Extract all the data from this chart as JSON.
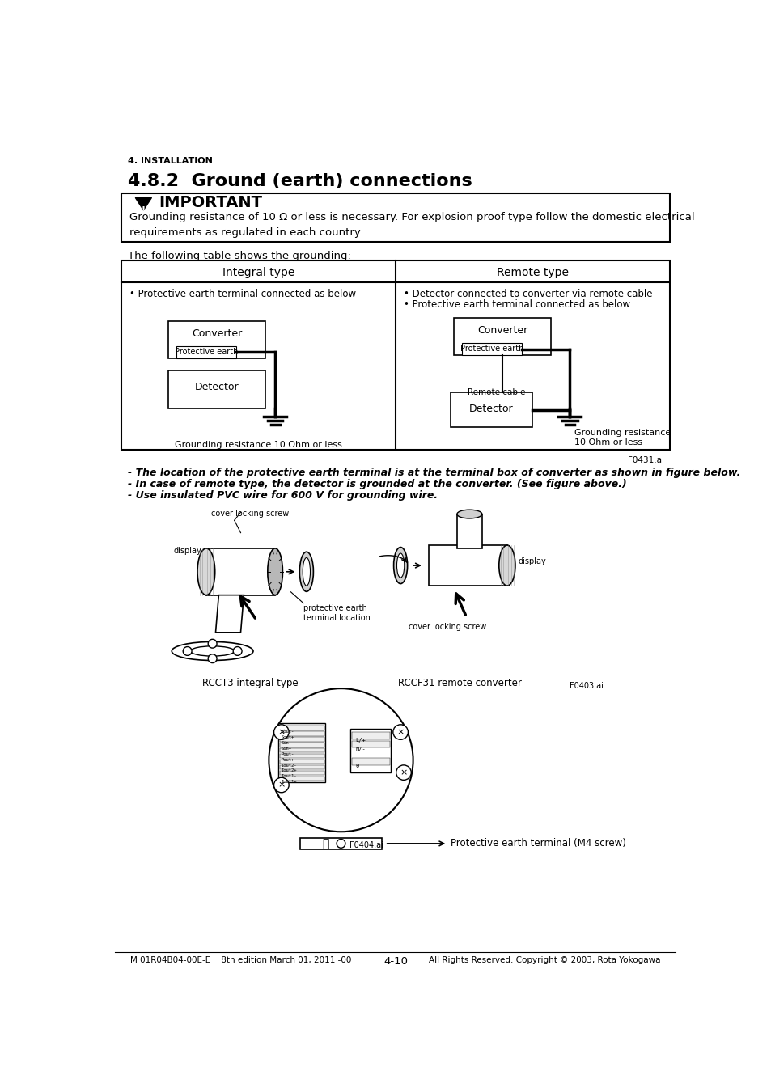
{
  "page_title": "4. INSTALLATION",
  "section_title": "4.8.2  Ground (earth) connections",
  "important_title": "IMPORTANT",
  "important_text": "Grounding resistance of 10 Ω or less is necessary. For explosion proof type follow the domestic electrical\nrequirements as regulated in each country.",
  "table_intro": "The following table shows the grounding:",
  "col1_header": "Integral type",
  "col2_header": "Remote type",
  "col1_bullet1": "• Protective earth terminal connected as below",
  "col2_bullet1": "• Detector connected to converter via remote cable",
  "col2_bullet2": "• Protective earth terminal connected as below",
  "col1_converter": "Converter",
  "col1_protective": "Protective earth",
  "col1_detector": "Detector",
  "col1_ground_label": "Grounding resistance 10 Ohm or less",
  "col2_converter": "Converter",
  "col2_protective": "Protective earth",
  "col2_remote_cable": "Remote cable",
  "col2_detector": "Detector",
  "col2_ground_label": "Grounding resistance\n10 Ohm or less",
  "fig1_label": "F0431.ai",
  "note1": "- The location of the protective earth terminal is at the terminal box of converter as shown in figure below.",
  "note2": "- In case of remote type, the detector is grounded at the converter. (See figure above.)",
  "note3": "- Use insulated PVC wire for 600 V for grounding wire.",
  "rcct3_label": "RCCT3 integral type",
  "rccf31_label": "RCCF31 remote converter",
  "fig2_label": "F0403.ai",
  "cover_locking_screw": "cover locking screw",
  "display_left": "display",
  "display_right": "display",
  "protective_earth_terminal": "protective earth\nterminal location",
  "cover_locking_screw2": "cover locking screw",
  "fig3_label": "F0404.ai",
  "protective_earth_m4": "Protective earth terminal (M4 screw)",
  "footer_left": "IM 01R04B04-00E-E    8th edition March 01, 2011 -00",
  "footer_center": "4-10",
  "footer_right": "All Rights Reserved. Copyright © 2003, Rota Yokogawa",
  "bg_color": "#ffffff",
  "text_color": "#000000"
}
